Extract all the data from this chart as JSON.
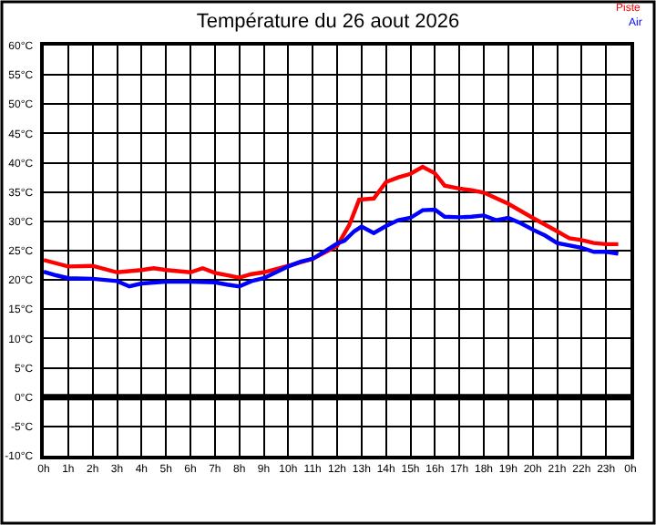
{
  "chart_data": {
    "type": "line",
    "title": "Température du 26 aout 2026",
    "xlim": [
      "2026-08-26T00:00",
      "2026-08-27T00:00"
    ],
    "xticks": [
      {
        "value": "2026-08-26T00:00",
        "label": "0h"
      },
      {
        "value": "2026-08-26T01:00",
        "label": "1h"
      },
      {
        "value": "2026-08-26T02:00",
        "label": "2h"
      },
      {
        "value": "2026-08-26T03:00",
        "label": "3h"
      },
      {
        "value": "2026-08-26T04:00",
        "label": "4h"
      },
      {
        "value": "2026-08-26T05:00",
        "label": "5h"
      },
      {
        "value": "2026-08-26T06:00",
        "label": "6h"
      },
      {
        "value": "2026-08-26T07:00",
        "label": "7h"
      },
      {
        "value": "2026-08-26T08:00",
        "label": "8h"
      },
      {
        "value": "2026-08-26T09:00",
        "label": "9h"
      },
      {
        "value": "2026-08-26T10:00",
        "label": "10h"
      },
      {
        "value": "2026-08-26T11:00",
        "label": "11h"
      },
      {
        "value": "2026-08-26T12:00",
        "label": "12h"
      },
      {
        "value": "2026-08-26T13:00",
        "label": "13h"
      },
      {
        "value": "2026-08-26T14:00",
        "label": "14h"
      },
      {
        "value": "2026-08-26T15:00",
        "label": "15h"
      },
      {
        "value": "2026-08-26T16:00",
        "label": "16h"
      },
      {
        "value": "2026-08-26T17:00",
        "label": "17h"
      },
      {
        "value": "2026-08-26T18:00",
        "label": "18h"
      },
      {
        "value": "2026-08-26T19:00",
        "label": "19h"
      },
      {
        "value": "2026-08-26T20:00",
        "label": "20h"
      },
      {
        "value": "2026-08-26T21:00",
        "label": "21h"
      },
      {
        "value": "2026-08-26T22:00",
        "label": "22h"
      },
      {
        "value": "2026-08-26T23:00",
        "label": "23h"
      },
      {
        "value": "2026-08-27T00:00",
        "label": "0h"
      }
    ],
    "ylim": [
      -10,
      60
    ],
    "yticks": [
      {
        "value": -10,
        "label": "-10°C"
      },
      {
        "value": -5,
        "label": "-5°C"
      },
      {
        "value": 0,
        "label": "0°C"
      },
      {
        "value": 5,
        "label": "5°C"
      },
      {
        "value": 10,
        "label": "10°C"
      },
      {
        "value": 15,
        "label": "15°C"
      },
      {
        "value": 20,
        "label": "20°C"
      },
      {
        "value": 25,
        "label": "25°C"
      },
      {
        "value": 30,
        "label": "30°C"
      },
      {
        "value": 35,
        "label": "35°C"
      },
      {
        "value": 40,
        "label": "40°C"
      },
      {
        "value": 45,
        "label": "45°C"
      },
      {
        "value": 50,
        "label": "50°C"
      },
      {
        "value": 55,
        "label": "55°C"
      },
      {
        "value": 60,
        "label": "60°C"
      }
    ],
    "grid": true,
    "legend": "top right",
    "marker": "none",
    "line_style": "solid",
    "ref_lines": [
      {
        "axis": "y",
        "value": 0,
        "color": "#000000"
      }
    ],
    "series": [
      {
        "name": "Piste",
        "color": "#ff0000",
        "x": [
          "2026-08-26T00:00",
          "2026-08-26T01:00",
          "2026-08-26T02:00",
          "2026-08-26T03:00",
          "2026-08-26T04:00",
          "2026-08-26T04:30",
          "2026-08-26T05:00",
          "2026-08-26T06:00",
          "2026-08-26T06:30",
          "2026-08-26T07:00",
          "2026-08-26T08:00",
          "2026-08-26T08:30",
          "2026-08-26T09:00",
          "2026-08-26T10:00",
          "2026-08-26T11:00",
          "2026-08-26T12:00",
          "2026-08-26T12:30",
          "2026-08-26T12:54",
          "2026-08-26T13:30",
          "2026-08-26T14:00",
          "2026-08-26T14:30",
          "2026-08-26T15:00",
          "2026-08-26T15:30",
          "2026-08-26T16:00",
          "2026-08-26T16:24",
          "2026-08-26T17:00",
          "2026-08-26T17:30",
          "2026-08-26T18:00",
          "2026-08-26T19:00",
          "2026-08-26T20:00",
          "2026-08-26T21:00",
          "2026-08-26T21:30",
          "2026-08-26T22:00",
          "2026-08-26T22:30",
          "2026-08-26T23:00",
          "2026-08-26T23:30"
        ],
        "values": [
          23.4,
          22.3,
          22.4,
          21.3,
          21.7,
          22,
          21.7,
          21.3,
          22,
          21.2,
          20.4,
          21,
          21.3,
          22.4,
          23.6,
          25.8,
          29.4,
          33.7,
          33.9,
          36.7,
          37.5,
          38.1,
          39.3,
          38.2,
          36.1,
          35.6,
          35.3,
          34.9,
          33,
          30.6,
          28.3,
          27.1,
          26.8,
          26.3,
          26.1,
          26.1
        ]
      },
      {
        "name": "Air",
        "color": "#0000ff",
        "x": [
          "2026-08-26T00:00",
          "2026-08-26T00:30",
          "2026-08-26T01:00",
          "2026-08-26T02:00",
          "2026-08-26T03:00",
          "2026-08-26T03:30",
          "2026-08-26T04:00",
          "2026-08-26T05:00",
          "2026-08-26T06:00",
          "2026-08-26T07:00",
          "2026-08-26T07:30",
          "2026-08-26T08:00",
          "2026-08-26T08:30",
          "2026-08-26T09:00",
          "2026-08-26T10:00",
          "2026-08-26T10:30",
          "2026-08-26T11:00",
          "2026-08-26T12:00",
          "2026-08-26T12:18",
          "2026-08-26T12:42",
          "2026-08-26T13:00",
          "2026-08-26T13:30",
          "2026-08-26T14:00",
          "2026-08-26T14:30",
          "2026-08-26T15:00",
          "2026-08-26T15:30",
          "2026-08-26T16:00",
          "2026-08-26T16:24",
          "2026-08-26T17:00",
          "2026-08-26T17:30",
          "2026-08-26T18:00",
          "2026-08-26T18:30",
          "2026-08-26T19:00",
          "2026-08-26T19:30",
          "2026-08-26T20:00",
          "2026-08-26T20:30",
          "2026-08-26T21:00",
          "2026-08-26T22:00",
          "2026-08-26T22:30",
          "2026-08-26T23:00",
          "2026-08-26T23:30"
        ],
        "values": [
          21.4,
          20.8,
          20.3,
          20.2,
          19.8,
          18.9,
          19.4,
          19.7,
          19.7,
          19.6,
          19.2,
          18.9,
          19.8,
          20.3,
          22.3,
          23.1,
          23.6,
          26.2,
          26.7,
          28.3,
          29.1,
          28,
          29.2,
          30.2,
          30.6,
          31.9,
          32,
          30.8,
          30.7,
          30.8,
          31,
          30.2,
          30.6,
          29.7,
          28.6,
          27.6,
          26.3,
          25.5,
          24.8,
          24.8,
          24.5
        ]
      }
    ]
  }
}
